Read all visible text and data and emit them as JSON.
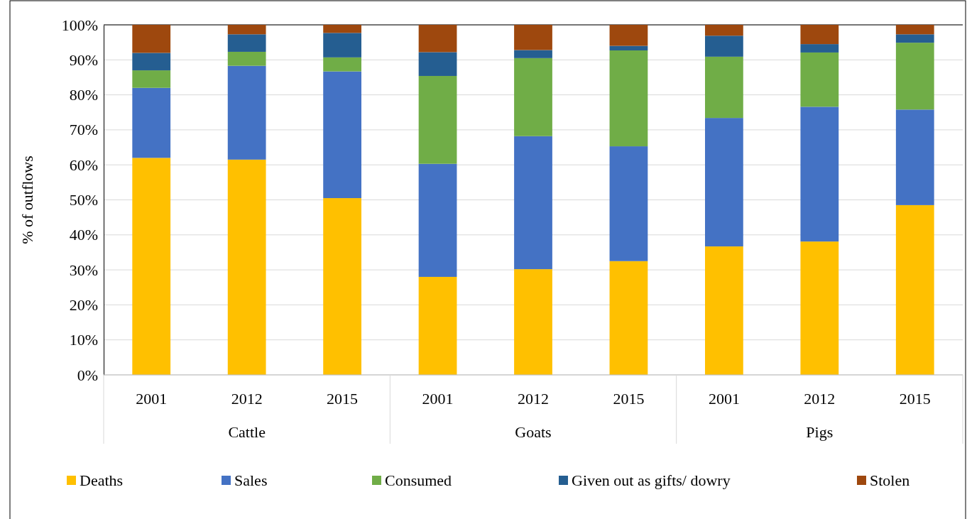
{
  "chart_data": {
    "type": "bar",
    "stacked": true,
    "ylabel": "% of outflows",
    "categories": [
      "2001",
      "2012",
      "2015",
      "2001",
      "2012",
      "2015",
      "2001",
      "2012",
      "2015"
    ],
    "annotations": [
      "Cattle",
      "Goats",
      "Pigs"
    ],
    "series": [
      {
        "name": "Deaths",
        "color": "#ffc000",
        "values": [
          62,
          61.5,
          50.5,
          28,
          30.2,
          32.5,
          36.7,
          38.1,
          48.5
        ]
      },
      {
        "name": "Sales",
        "color": "#4472c4",
        "values": [
          20,
          26.8,
          36.2,
          32.3,
          38,
          32.8,
          36.7,
          38.5,
          27.3
        ]
      },
      {
        "name": "Consumed",
        "color": "#70ad47",
        "values": [
          5,
          4,
          4,
          25.1,
          22.3,
          27.4,
          17.5,
          15.5,
          19.1
        ]
      },
      {
        "name": "Given out as gifts/ dowry",
        "color": "#255e91",
        "values": [
          5,
          5,
          7,
          6.8,
          2.3,
          1.3,
          6,
          2.4,
          2.4
        ]
      },
      {
        "name": "Stolen",
        "color": "#9e480e",
        "values": [
          8,
          2.7,
          2.3,
          7.8,
          7.2,
          6,
          3.1,
          5.5,
          2.7
        ]
      }
    ],
    "ylim": [
      0,
      100
    ],
    "yticks": [
      {
        "value": 0,
        "label": "0%"
      },
      {
        "value": 10,
        "label": "10%"
      },
      {
        "value": 20,
        "label": "20%"
      },
      {
        "value": 30,
        "label": "30%"
      },
      {
        "value": 40,
        "label": "40%"
      },
      {
        "value": 50,
        "label": "50%"
      },
      {
        "value": 60,
        "label": "60%"
      },
      {
        "value": 70,
        "label": "70%"
      },
      {
        "value": 80,
        "label": "80%"
      },
      {
        "value": 90,
        "label": "90%"
      },
      {
        "value": 100,
        "label": "100%"
      }
    ],
    "grid": "y",
    "legend": "bottom"
  }
}
